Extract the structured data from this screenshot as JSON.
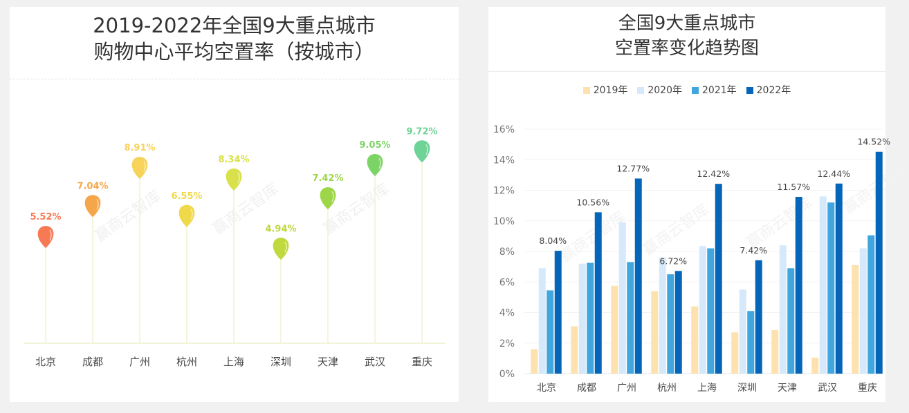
{
  "watermark": "赢商云智库",
  "chart_data": [
    {
      "type": "lollipop",
      "title_line1": "2019-2022年全国9大重点城市",
      "title_line2": "购物中心平均空置率（按城市）",
      "categories": [
        "北京",
        "成都",
        "广州",
        "杭州",
        "上海",
        "深圳",
        "天津",
        "武汉",
        "重庆"
      ],
      "values": [
        5.52,
        7.04,
        8.91,
        6.55,
        8.34,
        4.94,
        7.42,
        9.05,
        9.72
      ],
      "labels": [
        "5.52%",
        "7.04%",
        "8.91%",
        "6.55%",
        "8.34%",
        "4.94%",
        "7.42%",
        "9.05%",
        "9.72%"
      ],
      "colors": [
        "#f77a55",
        "#f6a64a",
        "#f8d35a",
        "#efd84a",
        "#d8e04a",
        "#bfd93e",
        "#9ed64a",
        "#7dd466",
        "#6fd398"
      ],
      "unit": "%"
    },
    {
      "type": "bar",
      "title_line1": "全国9大重点城市",
      "title_line2": "空置率变化趋势图",
      "categories": [
        "北京",
        "成都",
        "广州",
        "杭州",
        "上海",
        "深圳",
        "天津",
        "武汉",
        "重庆"
      ],
      "ylim": [
        0,
        16
      ],
      "yticks": [
        "0%",
        "2%",
        "4%",
        "6%",
        "8%",
        "10%",
        "12%",
        "14%",
        "16%"
      ],
      "grid": true,
      "legend_position": "top",
      "series": [
        {
          "name": "2019年",
          "color": "#fde2b0",
          "values": [
            1.6,
            3.1,
            5.75,
            5.4,
            4.4,
            2.7,
            2.85,
            1.05,
            7.1
          ]
        },
        {
          "name": "2020年",
          "color": "#d6e9fa",
          "values": [
            6.9,
            7.2,
            9.9,
            7.6,
            8.35,
            5.5,
            8.4,
            11.6,
            8.2
          ]
        },
        {
          "name": "2021年",
          "color": "#40a6dd",
          "values": [
            5.45,
            7.25,
            7.3,
            6.5,
            8.2,
            4.1,
            6.9,
            11.2,
            9.05
          ]
        },
        {
          "name": "2022年",
          "color": "#0565b9",
          "values": [
            8.04,
            10.56,
            12.77,
            6.72,
            12.42,
            7.42,
            11.57,
            12.44,
            14.52
          ]
        }
      ],
      "data_labels_2022": [
        "8.04%",
        "10.56%",
        "12.77%",
        "6.72%",
        "12.42%",
        "7.42%",
        "11.57%",
        "12.44%",
        "14.52%"
      ]
    }
  ]
}
